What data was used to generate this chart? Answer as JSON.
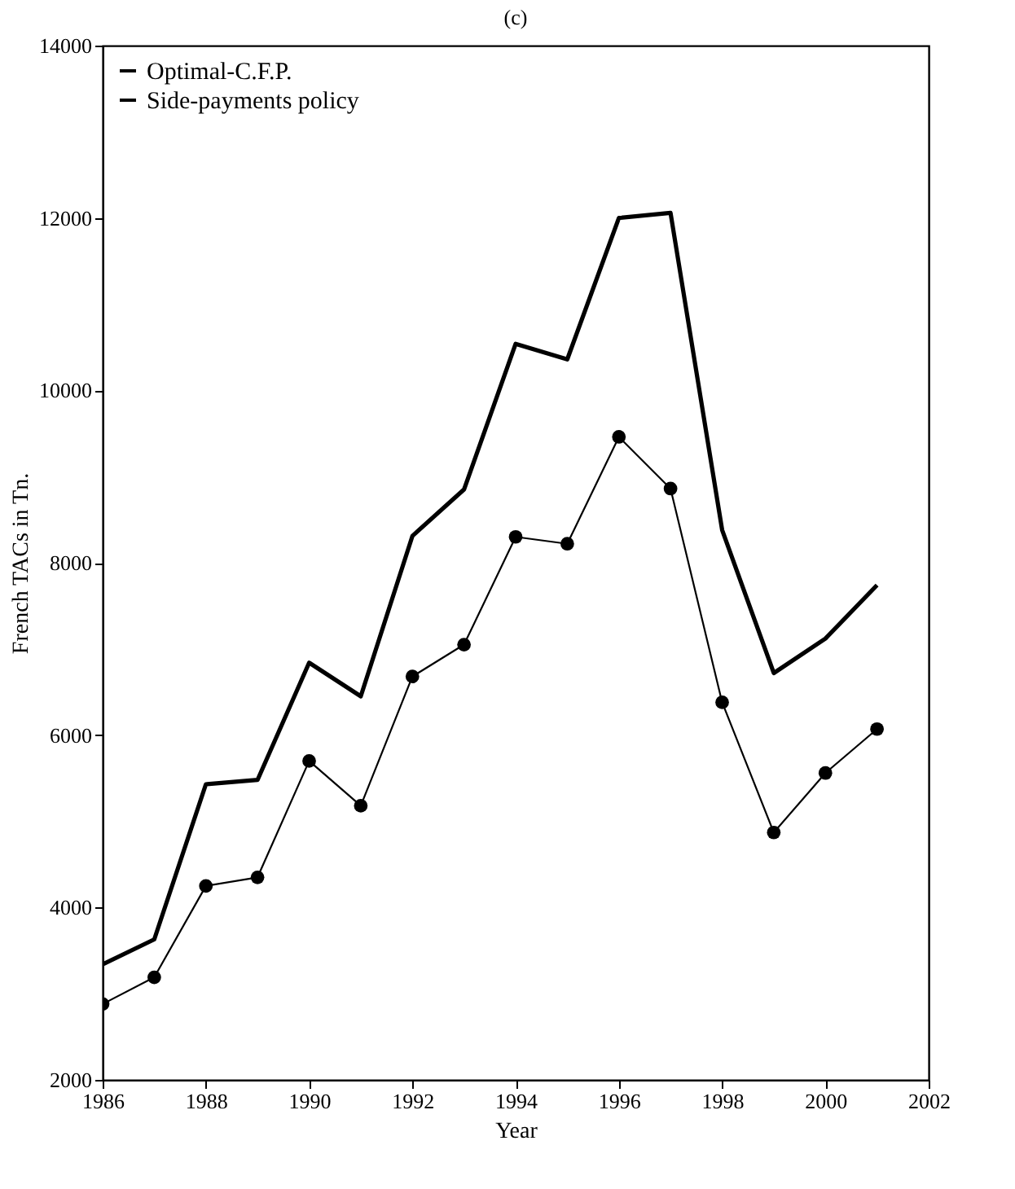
{
  "chart_data": {
    "type": "line",
    "title": "(c)",
    "xlabel": "Year",
    "ylabel": "French TACs in Tn.",
    "x": [
      1986,
      1987,
      1988,
      1989,
      1990,
      1991,
      1992,
      1993,
      1994,
      1995,
      1996,
      1997,
      1998,
      1999,
      2000,
      2001
    ],
    "series": [
      {
        "name": "Optimal-C.F.P.",
        "color": "#000000",
        "marker": "none",
        "values": [
          3340,
          3630,
          5430,
          5480,
          6840,
          6450,
          8310,
          8850,
          10540,
          10360,
          12000,
          12060,
          8380,
          6720,
          7120,
          7740
        ]
      },
      {
        "name": "Side-payments policy",
        "color": "#000000",
        "marker": "circle",
        "values": [
          2880,
          3190,
          4250,
          4350,
          5700,
          5180,
          6680,
          7050,
          8300,
          8220,
          9460,
          8860,
          6380,
          4870,
          5560,
          6070
        ]
      }
    ],
    "xlim": [
      1986,
      2002
    ],
    "xticks": [
      1986,
      1988,
      1990,
      1992,
      1994,
      1996,
      1998,
      2000,
      2002
    ],
    "ylim": [
      2000,
      14000
    ],
    "yticks": [
      2000,
      4000,
      6000,
      8000,
      10000,
      12000,
      14000
    ],
    "grid": false,
    "legend": "top left",
    "line_style": "solid"
  }
}
